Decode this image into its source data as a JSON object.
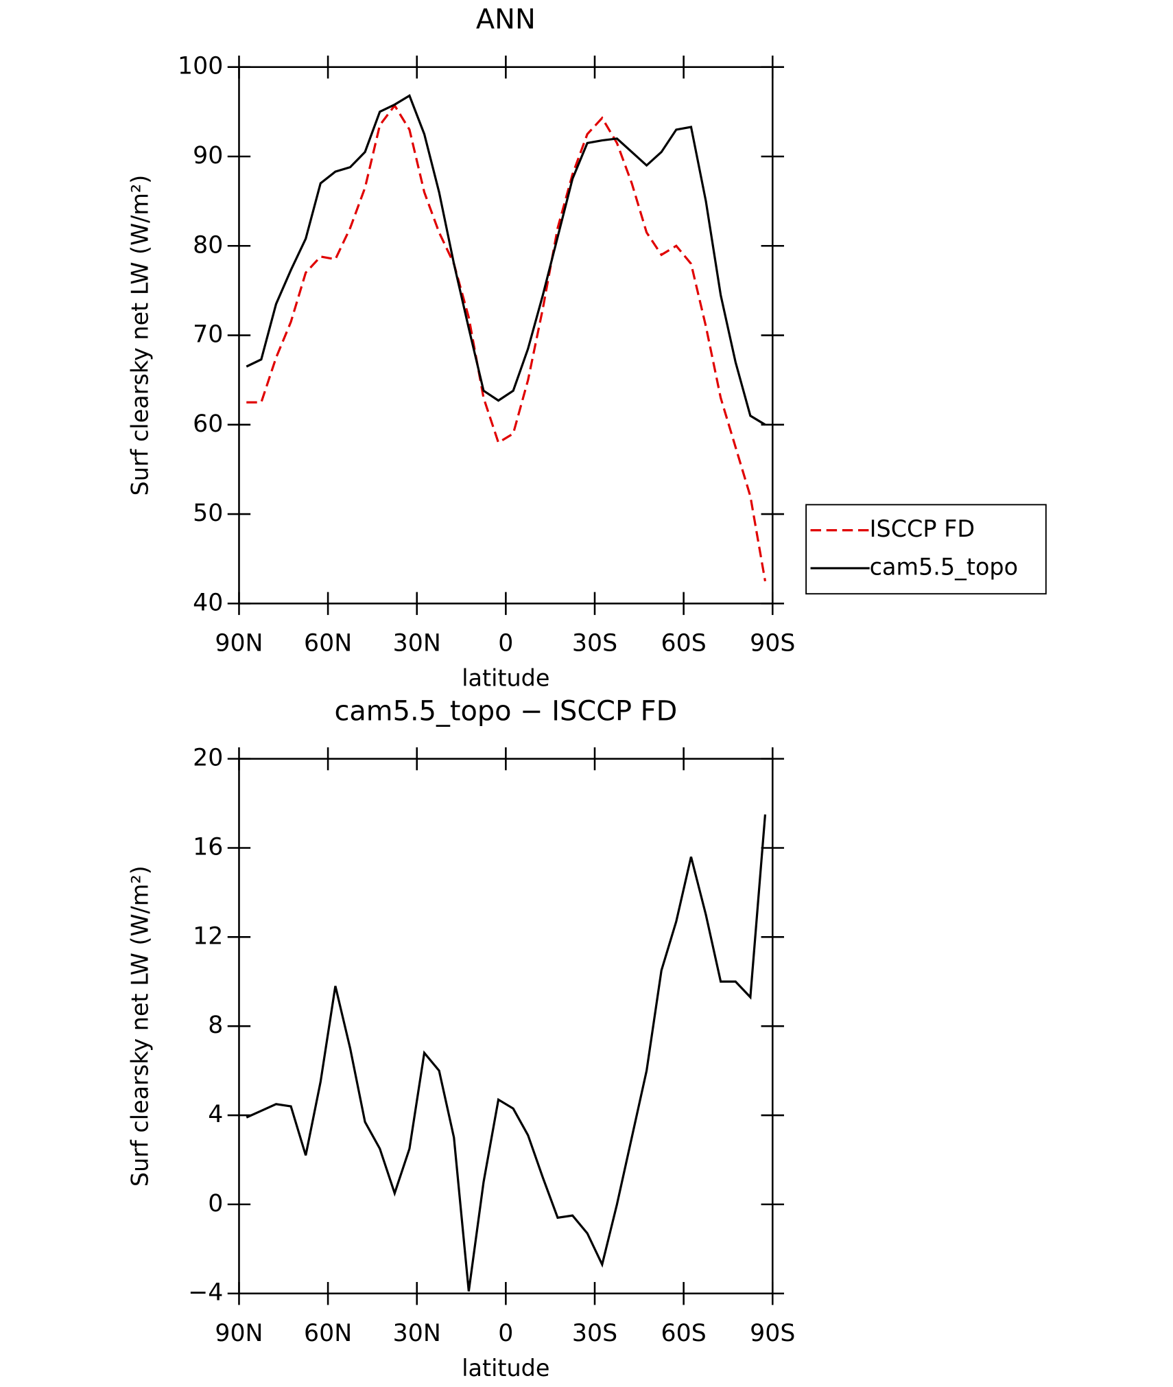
{
  "chart_data": [
    {
      "type": "line",
      "title": "ANN",
      "xlabel": "latitude",
      "ylabel": "Surf clearsky net LW (W/m²)",
      "x": [
        87.5,
        82.5,
        77.5,
        72.5,
        67.5,
        62.5,
        57.5,
        52.5,
        47.5,
        42.5,
        37.5,
        32.5,
        27.5,
        22.5,
        17.5,
        12.5,
        7.5,
        2.5,
        -2.5,
        -7.5,
        -12.5,
        -17.5,
        -22.5,
        -27.5,
        -32.5,
        -37.5,
        -42.5,
        -47.5,
        -52.5,
        -57.5,
        -62.5,
        -67.5,
        -72.5,
        -77.5,
        -82.5,
        -87.5
      ],
      "xlim": [
        90,
        -90
      ],
      "xticks": [
        {
          "value": 90,
          "label": "90N"
        },
        {
          "value": 60,
          "label": "60N"
        },
        {
          "value": 30,
          "label": "30N"
        },
        0,
        {
          "value": -30,
          "label": "30S"
        },
        {
          "value": -60,
          "label": "60S"
        },
        {
          "value": -90,
          "label": "90S"
        }
      ],
      "ylim": [
        40,
        100
      ],
      "yticks": [
        40,
        50,
        60,
        70,
        80,
        90,
        100
      ],
      "legend": "right",
      "series": [
        {
          "name": "ISCCP FD",
          "color": "#e00000",
          "dash": true,
          "values": [
            62.5,
            62.5,
            67.5,
            71.5,
            77,
            78.8,
            78.5,
            82,
            86.5,
            93.5,
            95.7,
            93,
            86,
            81.5,
            78,
            72,
            63,
            58,
            59,
            65,
            73,
            82,
            88,
            92.5,
            94.3,
            91.5,
            87,
            81.5,
            79,
            80,
            78,
            71,
            63,
            57.5,
            52,
            42.5
          ]
        },
        {
          "name": "cam5.5_topo",
          "color": "#000000",
          "dash": false,
          "values": [
            66.5,
            67.3,
            73.5,
            77.3,
            80.8,
            87,
            88.3,
            88.8,
            90.5,
            95,
            95.8,
            96.8,
            92.5,
            86,
            78,
            70.8,
            63.8,
            62.7,
            63.8,
            68.5,
            74.5,
            81,
            87.5,
            91.5,
            91.8,
            92,
            90.5,
            89,
            90.5,
            93,
            93.3,
            85,
            74.5,
            67,
            61,
            60
          ]
        }
      ]
    },
    {
      "type": "line",
      "title": "cam5.5_topo − ISCCP FD",
      "xlabel": "latitude",
      "ylabel": "Surf clearsky net LW (W/m²)",
      "x": [
        87.5,
        82.5,
        77.5,
        72.5,
        67.5,
        62.5,
        57.5,
        52.5,
        47.5,
        42.5,
        37.5,
        32.5,
        27.5,
        22.5,
        17.5,
        12.5,
        7.5,
        2.5,
        -2.5,
        -7.5,
        -12.5,
        -17.5,
        -22.5,
        -27.5,
        -32.5,
        -37.5,
        -42.5,
        -47.5,
        -52.5,
        -57.5,
        -62.5,
        -67.5,
        -72.5,
        -77.5,
        -82.5,
        -87.5
      ],
      "xlim": [
        90,
        -90
      ],
      "xticks": [
        {
          "value": 90,
          "label": "90N"
        },
        {
          "value": 60,
          "label": "60N"
        },
        {
          "value": 30,
          "label": "30N"
        },
        0,
        {
          "value": -30,
          "label": "30S"
        },
        {
          "value": -60,
          "label": "60S"
        },
        {
          "value": -90,
          "label": "90S"
        }
      ],
      "ylim": [
        -4,
        20
      ],
      "yticks": [
        {
          "value": -4,
          "label": "−4"
        },
        0,
        4,
        8,
        12,
        16,
        20
      ],
      "series": [
        {
          "color": "#000000",
          "dash": false,
          "values": [
            3.9,
            4.2,
            4.5,
            4.4,
            2.2,
            5.5,
            9.8,
            7,
            3.7,
            2.5,
            0.5,
            2.5,
            6.8,
            6,
            3,
            -3.9,
            1,
            4.7,
            4.3,
            3.1,
            1.2,
            -0.6,
            -0.5,
            -1.3,
            -2.7,
            0,
            3,
            6,
            10.5,
            12.7,
            15.6,
            13,
            10,
            10,
            9.3,
            17.5
          ]
        }
      ]
    }
  ]
}
